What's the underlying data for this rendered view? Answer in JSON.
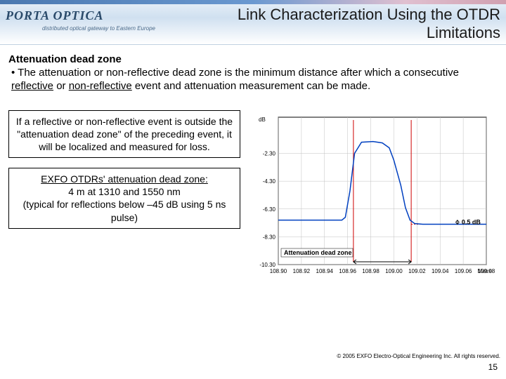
{
  "header": {
    "logo_main": "PORTA  OPTICA",
    "logo_sub": "distributed optical gateway to Eastern Europe",
    "title_line1": "Link Characterization Using the OTDR",
    "title_line2": "Limitations",
    "title_fontsize": 22,
    "title_color": "#1a1a1a",
    "stripe_gradient": [
      "#4a78b0",
      "#6a98d0",
      "#e0c0d0",
      "#d0a0b0"
    ],
    "bg_gradient": [
      "#e8f0f8",
      "#d0e0f0",
      "#ffffff"
    ]
  },
  "content": {
    "subheading": "Attenuation dead zone",
    "bullet_prefix": "• ",
    "bullet_text_1": "The attenuation or non-reflective dead zone is the minimum distance after which a consecutive ",
    "bullet_underline_1": "reflective",
    "bullet_text_2": " or ",
    "bullet_underline_2": "non-reflective",
    "bullet_text_3": " event and attenuation measurement can be made."
  },
  "boxes": {
    "box1": "If a reflective or non-reflective event is outside the \"attenuation dead zone\" of the preceding event, it will be localized and measured for loss.",
    "box2_u": "EXFO OTDRs' attenuation dead zone:",
    "box2_l1": "4 m at 1310 and 1550 nm",
    "box2_l2": "(typical for reflections below –45 dB using 5 ns pulse)"
  },
  "chart": {
    "type": "line",
    "x_label": "Metre",
    "y_label": "dB",
    "xlim": [
      108.9,
      109.08
    ],
    "ylim": [
      -10.3,
      0.3
    ],
    "x_ticks": [
      108.9,
      108.92,
      108.94,
      108.96,
      108.98,
      109.0,
      109.02,
      109.04,
      109.06,
      109.08
    ],
    "y_ticks": [
      -2.3,
      -4.3,
      -6.3,
      -8.3,
      -10.3
    ],
    "trace_color": "#0040c0",
    "grid_color": "#c0c0c0",
    "background_color": "#ffffff",
    "vline_x": [
      108.965,
      109.015
    ],
    "vline_color": "#d00000",
    "hline_y": -7.4,
    "db_annot": "0.5 dB",
    "adz_label": "Attenuation dead zone",
    "trace_points": [
      [
        108.9,
        -7.1
      ],
      [
        108.955,
        -7.1
      ],
      [
        108.958,
        -6.9
      ],
      [
        108.962,
        -5.0
      ],
      [
        108.966,
        -2.3
      ],
      [
        108.972,
        -1.5
      ],
      [
        108.982,
        -1.45
      ],
      [
        108.99,
        -1.55
      ],
      [
        108.996,
        -1.9
      ],
      [
        109.0,
        -2.8
      ],
      [
        109.006,
        -4.6
      ],
      [
        109.01,
        -6.2
      ],
      [
        109.014,
        -7.1
      ],
      [
        109.018,
        -7.35
      ],
      [
        109.025,
        -7.4
      ],
      [
        109.08,
        -7.4
      ]
    ]
  },
  "footer": {
    "copyright": "© 2005 EXFO Electro-Optical Engineering Inc. All rights reserved.",
    "page_number": "15"
  }
}
